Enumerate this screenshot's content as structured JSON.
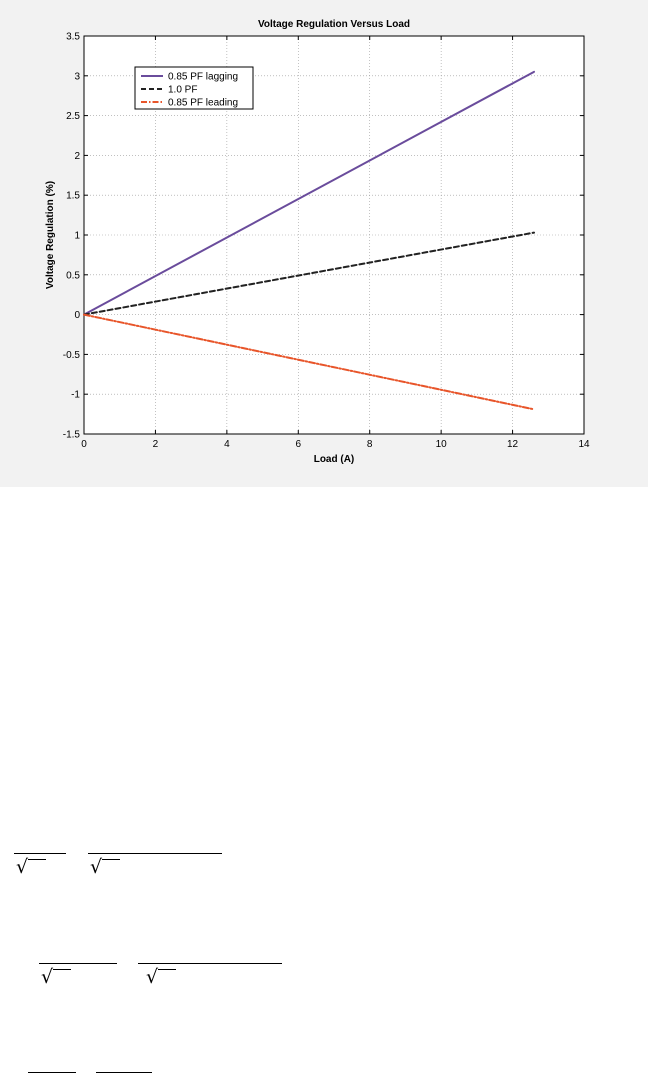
{
  "chart_data": {
    "type": "line",
    "title": "Voltage Regulation Versus Load",
    "xlabel": "Load (A)",
    "ylabel": "Voltage Regulation (%)",
    "xlim": [
      0,
      14
    ],
    "ylim": [
      -1.5,
      3.5
    ],
    "xticks": [
      0,
      2,
      4,
      6,
      8,
      10,
      12,
      14
    ],
    "yticks": [
      -1.5,
      -1,
      -0.5,
      0,
      0.5,
      1,
      1.5,
      2,
      2.5,
      3,
      3.5
    ],
    "grid": true,
    "legend_position": "top-left",
    "series": [
      {
        "name": "0.85 PF lagging",
        "color": "#6a4c9c",
        "style": "solid",
        "x": [
          0,
          12.6
        ],
        "y": [
          0,
          3.05
        ]
      },
      {
        "name": "1.0 PF",
        "color": "#222222",
        "style": "dashed",
        "x": [
          0,
          12.6
        ],
        "y": [
          0,
          1.03
        ]
      },
      {
        "name": "0.85 PF leading",
        "color": "#e8552a",
        "style": "dashdot",
        "x": [
          0,
          12.6
        ],
        "y": [
          0,
          -1.19
        ]
      }
    ]
  }
}
